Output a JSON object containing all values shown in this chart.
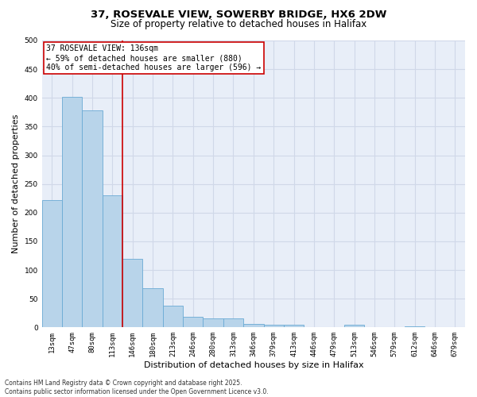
{
  "title_line1": "37, ROSEVALE VIEW, SOWERBY BRIDGE, HX6 2DW",
  "title_line2": "Size of property relative to detached houses in Halifax",
  "xlabel": "Distribution of detached houses by size in Halifax",
  "ylabel": "Number of detached properties",
  "categories": [
    "13sqm",
    "47sqm",
    "80sqm",
    "113sqm",
    "146sqm",
    "180sqm",
    "213sqm",
    "246sqm",
    "280sqm",
    "313sqm",
    "346sqm",
    "379sqm",
    "413sqm",
    "446sqm",
    "479sqm",
    "513sqm",
    "546sqm",
    "579sqm",
    "612sqm",
    "646sqm",
    "679sqm"
  ],
  "values": [
    222,
    402,
    378,
    230,
    120,
    68,
    38,
    18,
    15,
    15,
    6,
    5,
    5,
    0,
    0,
    5,
    0,
    0,
    2,
    0,
    0
  ],
  "bar_color": "#b8d4ea",
  "bar_edge_color": "#6aaad4",
  "vline_color": "#cc0000",
  "annotation_text": "37 ROSEVALE VIEW: 136sqm\n← 59% of detached houses are smaller (880)\n40% of semi-detached houses are larger (596) →",
  "annotation_box_color": "#ffffff",
  "annotation_box_edge": "#cc0000",
  "ylim": [
    0,
    500
  ],
  "yticks": [
    0,
    50,
    100,
    150,
    200,
    250,
    300,
    350,
    400,
    450,
    500
  ],
  "bg_color": "#e8eef8",
  "grid_color": "#d0d8e8",
  "footer_text": "Contains HM Land Registry data © Crown copyright and database right 2025.\nContains public sector information licensed under the Open Government Licence v3.0.",
  "title_fontsize": 9.5,
  "subtitle_fontsize": 8.5,
  "tick_fontsize": 6.5,
  "label_fontsize": 8,
  "annot_fontsize": 7,
  "footer_fontsize": 5.5
}
